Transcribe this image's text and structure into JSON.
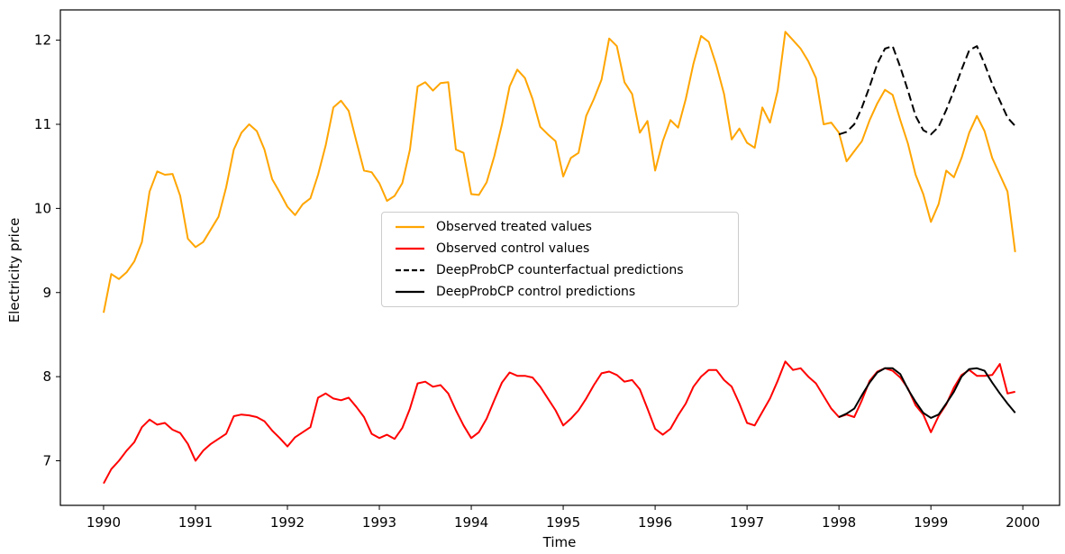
{
  "figure": {
    "background": "#ffffff"
  },
  "axes": {
    "x_label": "Time",
    "y_label": "Electricity price"
  },
  "chart_data": {
    "type": "line",
    "xlabel": "Time",
    "ylabel": "Electricity price",
    "xlim": [
      1989.53,
      2000.4
    ],
    "ylim": [
      6.47,
      12.36
    ],
    "x_ticks": [
      "1990",
      "1991",
      "1992",
      "1993",
      "1994",
      "1995",
      "1996",
      "1997",
      "1998",
      "1999",
      "2000"
    ],
    "y_ticks": [
      "7",
      "8",
      "9",
      "10",
      "11",
      "12"
    ],
    "grid": false,
    "legend_position": "center-left-inside",
    "frame_color": "#000000",
    "series": [
      {
        "name": "Observed treated values",
        "color": "#ffa500",
        "line_style": "solid",
        "line_width": 2,
        "x_start": 1990.0,
        "x_step_years": 0.0833333,
        "values": [
          8.76,
          9.22,
          9.16,
          9.24,
          9.37,
          9.6,
          10.2,
          10.44,
          10.4,
          10.41,
          10.15,
          9.64,
          9.54,
          9.6,
          9.75,
          9.9,
          10.25,
          10.7,
          10.9,
          11.0,
          10.92,
          10.7,
          10.35,
          10.19,
          10.02,
          9.92,
          10.05,
          10.12,
          10.4,
          10.75,
          11.2,
          11.28,
          11.16,
          10.8,
          10.45,
          10.43,
          10.3,
          10.09,
          10.15,
          10.3,
          10.7,
          11.45,
          11.5,
          11.4,
          11.49,
          11.5,
          10.7,
          10.66,
          10.17,
          10.16,
          10.31,
          10.62,
          11.0,
          11.45,
          11.65,
          11.55,
          11.3,
          10.97,
          10.88,
          10.8,
          10.38,
          10.6,
          10.66,
          11.1,
          11.3,
          11.53,
          12.02,
          11.93,
          11.5,
          11.36,
          10.9,
          11.04,
          10.45,
          10.8,
          11.05,
          10.96,
          11.3,
          11.72,
          12.05,
          11.98,
          11.7,
          11.36,
          10.82,
          10.95,
          10.78,
          10.72,
          11.2,
          11.02,
          11.4,
          12.1,
          12.0,
          11.9,
          11.75,
          11.55,
          11.0,
          11.02,
          10.9,
          10.56,
          10.68,
          10.8,
          11.05,
          11.25,
          11.41,
          11.35,
          11.05,
          10.77,
          10.4,
          10.17,
          9.84,
          10.05,
          10.45,
          10.37,
          10.6,
          10.9,
          11.1,
          10.92,
          10.6,
          10.4,
          10.2,
          9.48
        ]
      },
      {
        "name": "Observed control values",
        "color": "#ff0000",
        "line_style": "solid",
        "line_width": 2,
        "x_start": 1990.0,
        "x_step_years": 0.0833333,
        "values": [
          6.73,
          6.9,
          7.0,
          7.12,
          7.22,
          7.4,
          7.49,
          7.43,
          7.45,
          7.37,
          7.33,
          7.2,
          7.0,
          7.12,
          7.2,
          7.26,
          7.32,
          7.53,
          7.55,
          7.54,
          7.52,
          7.47,
          7.36,
          7.27,
          7.17,
          7.28,
          7.34,
          7.4,
          7.75,
          7.8,
          7.74,
          7.72,
          7.75,
          7.64,
          7.52,
          7.32,
          7.27,
          7.31,
          7.26,
          7.39,
          7.62,
          7.92,
          7.94,
          7.88,
          7.9,
          7.8,
          7.6,
          7.42,
          7.27,
          7.34,
          7.5,
          7.72,
          7.93,
          8.05,
          8.01,
          8.01,
          7.99,
          7.88,
          7.74,
          7.6,
          7.42,
          7.5,
          7.6,
          7.74,
          7.9,
          8.04,
          8.06,
          8.02,
          7.94,
          7.96,
          7.85,
          7.62,
          7.38,
          7.31,
          7.38,
          7.54,
          7.68,
          7.88,
          8.0,
          8.08,
          8.08,
          7.96,
          7.88,
          7.68,
          7.45,
          7.42,
          7.58,
          7.74,
          7.95,
          8.18,
          8.08,
          8.1,
          8.0,
          7.92,
          7.77,
          7.62,
          7.52,
          7.55,
          7.52,
          7.72,
          7.95,
          8.06,
          8.1,
          8.07,
          7.99,
          7.86,
          7.66,
          7.55,
          7.34,
          7.53,
          7.67,
          7.87,
          8.02,
          8.08,
          8.01,
          8.01,
          8.02,
          8.15,
          7.8,
          7.82
        ]
      },
      {
        "name": "DeepProbCP counterfactual predictions",
        "color": "#000000",
        "line_style": "dashed",
        "line_width": 2,
        "x_start": 1998.0,
        "x_step_years": 0.0833333,
        "values": [
          10.88,
          10.91,
          11.0,
          11.2,
          11.45,
          11.72,
          11.9,
          11.93,
          11.68,
          11.4,
          11.1,
          10.93,
          10.88,
          10.97,
          11.17,
          11.4,
          11.65,
          11.88,
          11.93,
          11.72,
          11.48,
          11.28,
          11.08,
          10.98
        ]
      },
      {
        "name": "DeepProbCP control predictions",
        "color": "#000000",
        "line_style": "solid",
        "line_width": 2,
        "x_start": 1998.0,
        "x_step_years": 0.0833333,
        "values": [
          7.52,
          7.56,
          7.62,
          7.78,
          7.93,
          8.05,
          8.1,
          8.1,
          8.03,
          7.85,
          7.7,
          7.57,
          7.51,
          7.55,
          7.68,
          7.82,
          8.0,
          8.09,
          8.1,
          8.07,
          7.93,
          7.8,
          7.68,
          7.57
        ]
      }
    ]
  }
}
